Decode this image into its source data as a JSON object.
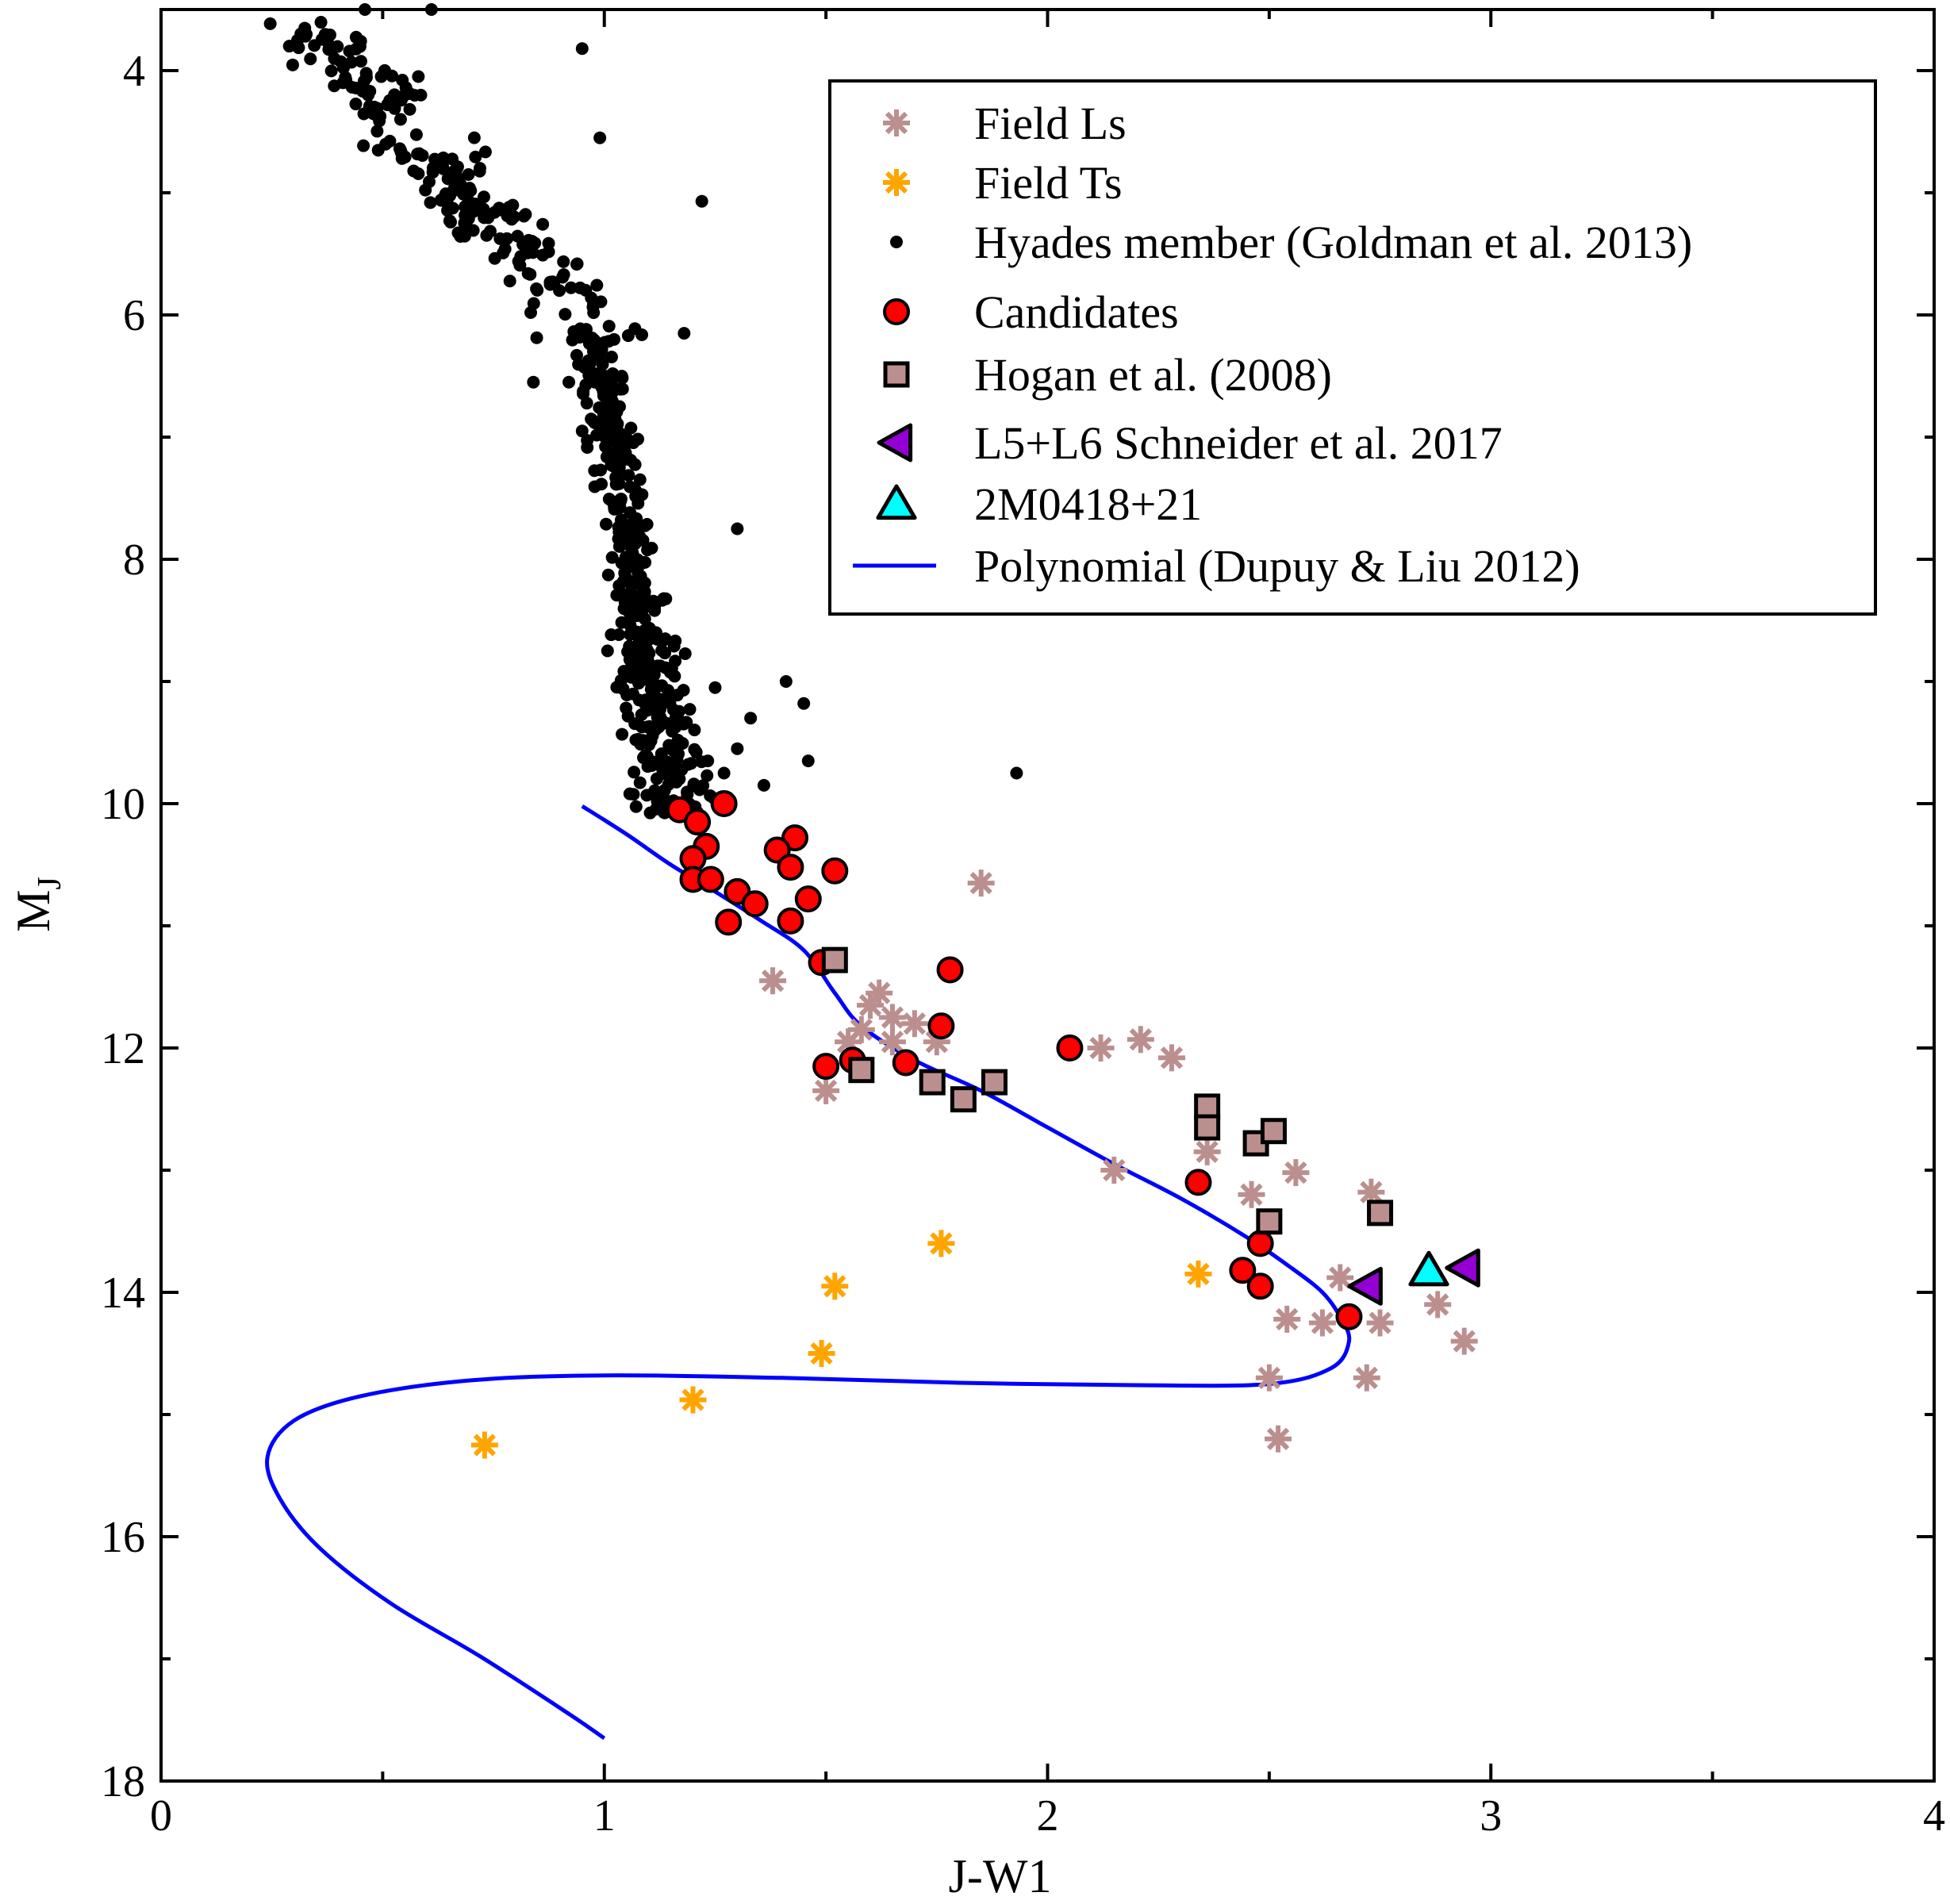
{
  "chart_data": {
    "type": "scatter",
    "title": "",
    "xlabel": "J-W1",
    "ylabel_main": "M",
    "ylabel_sub": "J",
    "xlim": [
      0,
      4
    ],
    "ylim": [
      18,
      3.5
    ],
    "y_inverted": true,
    "grid": false,
    "legend_position": "top-right",
    "x_ticks": [
      "0",
      "1",
      "2",
      "3",
      "4"
    ],
    "y_ticks": [
      "4",
      "6",
      "8",
      "10",
      "12",
      "14",
      "16",
      "18"
    ],
    "colors": {
      "field_ls": "#bc8f8f",
      "field_ts": "#ffa500",
      "hyades": "#000000",
      "candidates": "#ff0000",
      "hogan": "#bc8f8f",
      "schneider": "#9400d3",
      "tri_2m0418": "#00ffff",
      "polynomial": "#0000ff"
    },
    "legend": [
      {
        "key": "field_ls",
        "label": "Field Ls",
        "marker": "asterisk"
      },
      {
        "key": "field_ts",
        "label": "Field Ts",
        "marker": "asterisk"
      },
      {
        "key": "hyades",
        "label": "Hyades member (Goldman et al. 2013)",
        "marker": "dot"
      },
      {
        "key": "candidates",
        "label": "Candidates",
        "marker": "circle"
      },
      {
        "key": "hogan",
        "label": "Hogan et al. (2008)",
        "marker": "square"
      },
      {
        "key": "schneider",
        "label": "L5+L6 Schneider et al. 2017",
        "marker": "triangle-left"
      },
      {
        "key": "tri_2m0418",
        "label": "2M0418+21",
        "marker": "triangle-up"
      },
      {
        "key": "polynomial",
        "label": "Polynomial (Dupuy & Liu 2012)",
        "marker": "line"
      }
    ],
    "series": {
      "field_ls": [
        [
          1.85,
          10.65
        ],
        [
          1.38,
          11.45
        ],
        [
          1.62,
          11.55
        ],
        [
          1.6,
          11.65
        ],
        [
          1.65,
          11.75
        ],
        [
          1.7,
          11.8
        ],
        [
          1.58,
          11.85
        ],
        [
          1.55,
          11.95
        ],
        [
          1.65,
          11.95
        ],
        [
          1.75,
          11.95
        ],
        [
          1.5,
          12.35
        ],
        [
          2.12,
          12.0
        ],
        [
          2.21,
          11.93
        ],
        [
          2.28,
          12.08
        ],
        [
          2.15,
          13.0
        ],
        [
          2.36,
          12.85
        ],
        [
          2.46,
          13.2
        ],
        [
          2.56,
          13.02
        ],
        [
          2.73,
          13.18
        ],
        [
          2.66,
          13.88
        ],
        [
          2.54,
          14.22
        ],
        [
          2.62,
          14.25
        ],
        [
          2.75,
          14.25
        ],
        [
          2.88,
          14.1
        ],
        [
          2.94,
          14.4
        ],
        [
          2.5,
          14.7
        ],
        [
          2.72,
          14.7
        ],
        [
          2.52,
          15.2
        ]
      ],
      "field_ts": [
        [
          0.73,
          15.25
        ],
        [
          1.2,
          14.88
        ],
        [
          1.49,
          14.5
        ],
        [
          1.52,
          13.95
        ],
        [
          1.76,
          13.6
        ],
        [
          2.34,
          13.85
        ]
      ],
      "candidates": [
        [
          1.27,
          10.0
        ],
        [
          1.17,
          10.05
        ],
        [
          1.21,
          10.15
        ],
        [
          1.23,
          10.35
        ],
        [
          1.2,
          10.45
        ],
        [
          1.2,
          10.62
        ],
        [
          1.24,
          10.62
        ],
        [
          1.3,
          10.72
        ],
        [
          1.34,
          10.82
        ],
        [
          1.28,
          10.97
        ],
        [
          1.43,
          10.28
        ],
        [
          1.39,
          10.38
        ],
        [
          1.42,
          10.52
        ],
        [
          1.52,
          10.55
        ],
        [
          1.46,
          10.78
        ],
        [
          1.42,
          10.96
        ],
        [
          1.49,
          11.3
        ],
        [
          1.78,
          11.36
        ],
        [
          1.76,
          11.82
        ],
        [
          1.5,
          12.15
        ],
        [
          1.56,
          12.1
        ],
        [
          1.68,
          12.12
        ],
        [
          2.05,
          12.0
        ],
        [
          2.34,
          13.1
        ],
        [
          2.44,
          13.82
        ],
        [
          2.48,
          13.6
        ],
        [
          2.48,
          13.95
        ],
        [
          2.68,
          14.2
        ]
      ],
      "hogan": [
        [
          1.52,
          11.28
        ],
        [
          1.58,
          12.18
        ],
        [
          1.74,
          12.28
        ],
        [
          1.81,
          12.42
        ],
        [
          1.88,
          12.28
        ],
        [
          2.36,
          12.48
        ],
        [
          2.36,
          12.65
        ],
        [
          2.47,
          12.78
        ],
        [
          2.51,
          12.68
        ],
        [
          2.5,
          13.42
        ],
        [
          2.75,
          13.35
        ]
      ],
      "schneider": [
        [
          2.72,
          13.95
        ],
        [
          2.94,
          13.8
        ]
      ],
      "tri_2m0418": [
        [
          2.86,
          13.82
        ]
      ],
      "polynomial": [
        [
          0.95,
          10.02
        ],
        [
          1.05,
          10.25
        ],
        [
          1.15,
          10.5
        ],
        [
          1.25,
          10.72
        ],
        [
          1.35,
          10.95
        ],
        [
          1.45,
          11.2
        ],
        [
          1.52,
          11.55
        ],
        [
          1.58,
          11.82
        ],
        [
          1.7,
          12.1
        ],
        [
          1.85,
          12.35
        ],
        [
          2.0,
          12.65
        ],
        [
          2.15,
          12.95
        ],
        [
          2.3,
          13.23
        ],
        [
          2.45,
          13.55
        ],
        [
          2.55,
          13.8
        ],
        [
          2.62,
          14.0
        ],
        [
          2.66,
          14.2
        ],
        [
          2.68,
          14.4
        ],
        [
          2.64,
          14.62
        ],
        [
          2.5,
          14.75
        ],
        [
          2.2,
          14.76
        ],
        [
          1.8,
          14.74
        ],
        [
          1.4,
          14.7
        ],
        [
          1.0,
          14.68
        ],
        [
          0.7,
          14.72
        ],
        [
          0.45,
          14.85
        ],
        [
          0.3,
          15.05
        ],
        [
          0.24,
          15.35
        ],
        [
          0.27,
          15.7
        ],
        [
          0.36,
          16.1
        ],
        [
          0.52,
          16.55
        ],
        [
          0.72,
          16.98
        ],
        [
          0.92,
          17.45
        ],
        [
          1.0,
          17.65
        ]
      ],
      "hyades_ridge": [
        [
          0.33,
          3.6
        ],
        [
          0.4,
          3.8
        ],
        [
          0.48,
          4.1
        ],
        [
          0.55,
          4.45
        ],
        [
          0.62,
          4.8
        ],
        [
          0.7,
          5.1
        ],
        [
          0.78,
          5.35
        ],
        [
          0.86,
          5.6
        ],
        [
          0.93,
          5.9
        ],
        [
          0.98,
          6.25
        ],
        [
          1.0,
          6.6
        ],
        [
          1.02,
          7.0
        ],
        [
          1.04,
          7.4
        ],
        [
          1.06,
          7.8
        ],
        [
          1.07,
          8.2
        ],
        [
          1.08,
          8.6
        ],
        [
          1.1,
          9.0
        ],
        [
          1.12,
          9.4
        ],
        [
          1.15,
          9.8
        ],
        [
          1.16,
          10.1
        ]
      ],
      "hyades_outliers": [
        [
          0.95,
          3.82
        ],
        [
          0.99,
          4.55
        ],
        [
          1.22,
          5.07
        ],
        [
          0.46,
          3.5
        ],
        [
          0.61,
          3.5
        ],
        [
          1.3,
          7.75
        ],
        [
          1.36,
          9.85
        ],
        [
          1.41,
          9.0
        ],
        [
          1.45,
          9.18
        ],
        [
          1.46,
          9.65
        ],
        [
          1.93,
          9.75
        ],
        [
          1.18,
          6.15
        ],
        [
          0.84,
          6.55
        ],
        [
          0.92,
          6.55
        ],
        [
          0.95,
          6.95
        ],
        [
          1.33,
          9.3
        ],
        [
          1.25,
          9.05
        ],
        [
          1.3,
          9.55
        ],
        [
          1.27,
          9.75
        ]
      ]
    }
  }
}
